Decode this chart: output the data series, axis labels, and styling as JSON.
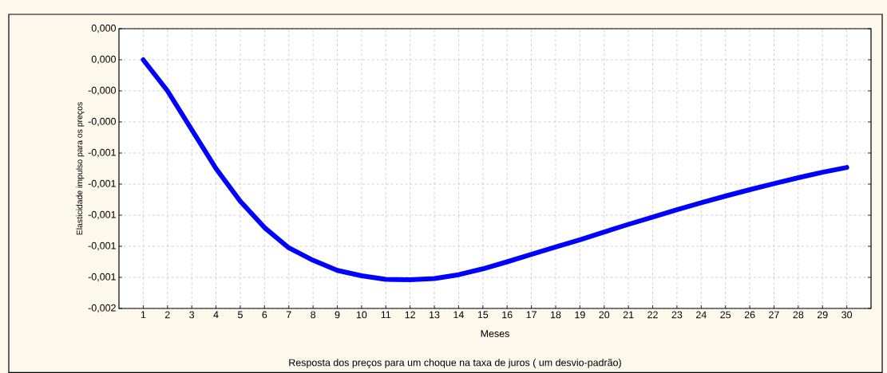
{
  "chart_data": {
    "type": "line",
    "xlabel": "Meses",
    "ylabel": "Elasticidade impulso para os preços",
    "annotations": [
      "Resposta dos preços para um choque na taxa de juros ( um desvio-padrão)"
    ],
    "x": [
      1,
      2,
      3,
      4,
      5,
      6,
      7,
      8,
      9,
      10,
      11,
      12,
      13,
      14,
      15,
      16,
      17,
      18,
      19,
      20,
      21,
      22,
      23,
      24,
      25,
      26,
      27,
      28,
      29,
      30
    ],
    "series": [
      {
        "color": "#0000ff",
        "values": [
          0.0,
          -0.0002,
          -0.00045,
          -0.0007,
          -0.00091,
          -0.00108,
          -0.00121,
          -0.00129,
          -0.001355,
          -0.00139,
          -0.001413,
          -0.001415,
          -0.001408,
          -0.001383,
          -0.001345,
          -0.0013,
          -0.001252,
          -0.001205,
          -0.001158,
          -0.001108,
          -0.001059,
          -0.001012,
          -0.000965,
          -0.00092,
          -0.000877,
          -0.000836,
          -0.000797,
          -0.000759,
          -0.000724,
          -0.000693
        ]
      }
    ],
    "xlim": [
      0,
      31
    ],
    "ylim": [
      -0.0016,
      0.0002
    ],
    "xticks": [
      1,
      2,
      3,
      4,
      5,
      6,
      7,
      8,
      9,
      10,
      11,
      12,
      13,
      14,
      15,
      16,
      17,
      18,
      19,
      20,
      21,
      22,
      23,
      24,
      25,
      26,
      27,
      28,
      29,
      30
    ],
    "yticks": [
      {
        "value": 0.0002,
        "label": "0,000"
      },
      {
        "value": 0,
        "label": "0,000"
      },
      {
        "value": -0.0002,
        "label": "-0,000"
      },
      {
        "value": -0.0004,
        "label": "-0,000"
      },
      {
        "value": -0.0006,
        "label": "-0,001"
      },
      {
        "value": -0.0008,
        "label": "-0,001"
      },
      {
        "value": -0.001,
        "label": "-0,001"
      },
      {
        "value": -0.0012,
        "label": "-0,001"
      },
      {
        "value": -0.0014,
        "label": "-0,001"
      },
      {
        "value": -0.0016,
        "label": "-0,002"
      }
    ],
    "grid": true
  }
}
